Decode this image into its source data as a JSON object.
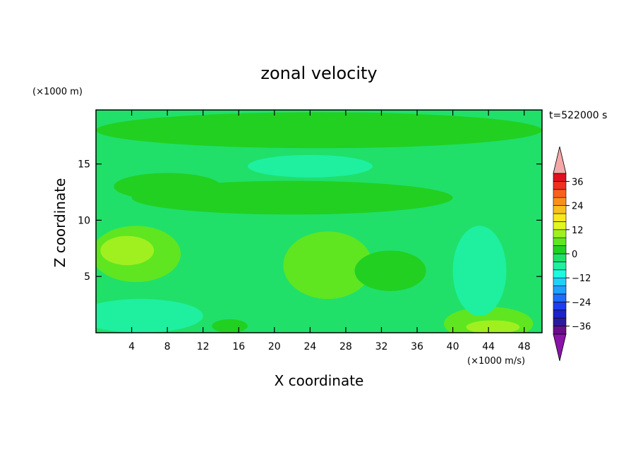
{
  "chart_data": {
    "type": "heatmap",
    "title": "zonal velocity",
    "xlabel": "X coordinate",
    "ylabel": "Z coordinate",
    "x_unit": "(×1000 m/s)",
    "y_unit": "(×1000 m)",
    "time_label": "t=522000 s",
    "xlim": [
      0,
      50
    ],
    "ylim": [
      0,
      19.8
    ],
    "x_ticks": [
      4,
      8,
      12,
      16,
      20,
      24,
      28,
      32,
      36,
      40,
      44,
      48
    ],
    "y_ticks": [
      5,
      10,
      15
    ],
    "colorbar": {
      "min": -40,
      "max": 40,
      "step": 4,
      "tick_labels": [
        "36",
        "24",
        "12",
        "0",
        "−12",
        "−24",
        "−36"
      ],
      "tick_values": [
        36,
        24,
        12,
        0,
        -12,
        -24,
        -36
      ],
      "colors": [
        "#6a0d8c",
        "#2c1a9e",
        "#1d22c9",
        "#1d3dee",
        "#1f6bfb",
        "#1fa0fb",
        "#20d0fa",
        "#1efae0",
        "#1ef0a0",
        "#20e06a",
        "#22d022",
        "#5fe620",
        "#a0f020",
        "#e0f820",
        "#f8e81e",
        "#f8c01e",
        "#f8901e",
        "#f8601e",
        "#f0301e",
        "#e0101e"
      ],
      "under_color": "#8a13a8",
      "over_color": "#f5a8a8"
    },
    "field": {
      "background_value": -2,
      "regions": [
        {
          "x": 25,
          "z": 18.0,
          "rx": 25,
          "rz": 1.6,
          "value": 2
        },
        {
          "x": 8,
          "z": 13.0,
          "rx": 6,
          "rz": 1.2,
          "value": 2
        },
        {
          "x": 22,
          "z": 12.0,
          "rx": 18,
          "rz": 1.5,
          "value": 2
        },
        {
          "x": 4.5,
          "z": 7.0,
          "rx": 5,
          "rz": 2.5,
          "value": 6
        },
        {
          "x": 3.5,
          "z": 7.3,
          "rx": 3,
          "rz": 1.3,
          "value": 10
        },
        {
          "x": 26,
          "z": 6.0,
          "rx": 5,
          "rz": 3.0,
          "value": 6
        },
        {
          "x": 33,
          "z": 5.5,
          "rx": 4,
          "rz": 1.8,
          "value": 2
        },
        {
          "x": 44,
          "z": 0.8,
          "rx": 5,
          "rz": 1.5,
          "value": 6
        },
        {
          "x": 44.5,
          "z": 0.5,
          "rx": 3,
          "rz": 0.6,
          "value": 10
        },
        {
          "x": 15,
          "z": 0.6,
          "rx": 2,
          "rz": 0.6,
          "value": 2
        },
        {
          "x": 43,
          "z": 5.5,
          "rx": 3,
          "rz": 4,
          "value": -6
        },
        {
          "x": 5,
          "z": 1.5,
          "rx": 7,
          "rz": 1.5,
          "value": -6
        },
        {
          "x": 24,
          "z": 14.8,
          "rx": 7,
          "rz": 1,
          "value": -5
        }
      ]
    }
  }
}
